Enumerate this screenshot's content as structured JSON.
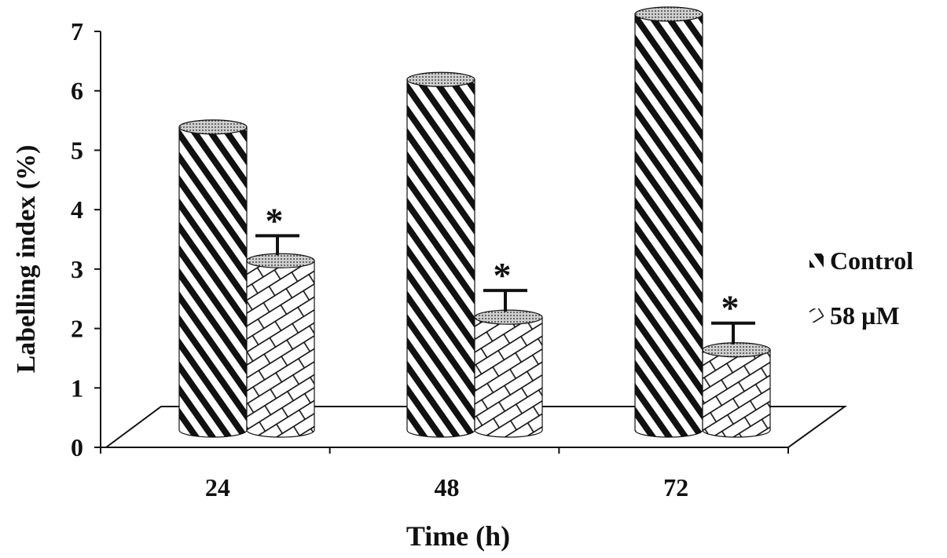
{
  "chart_data": {
    "type": "bar",
    "xlabel": "Time (h)",
    "ylabel": "Labelling index (%)",
    "ylim": [
      0,
      7
    ],
    "yticks": [
      0,
      1,
      2,
      3,
      4,
      5,
      6,
      7
    ],
    "categories": [
      "24",
      "48",
      "72"
    ],
    "series": [
      {
        "name": "Control",
        "values": [
          5.1,
          5.9,
          7.0
        ],
        "pattern": "diagonal-stripes"
      },
      {
        "name": "58 µM",
        "values": [
          2.85,
          1.9,
          1.35
        ],
        "errors": [
          0.42,
          0.45,
          0.45
        ],
        "pattern": "brick"
      }
    ],
    "annotations": [
      {
        "text": "*",
        "series": "58 µM",
        "category": "24"
      },
      {
        "text": "*",
        "series": "58 µM",
        "category": "48"
      },
      {
        "text": "*",
        "series": "58 µM",
        "category": "72"
      }
    ],
    "legend_position": "right",
    "grid": false,
    "style": "3d-cylinder",
    "colors": {
      "ink": "#111111",
      "background": "#ffffff"
    }
  }
}
